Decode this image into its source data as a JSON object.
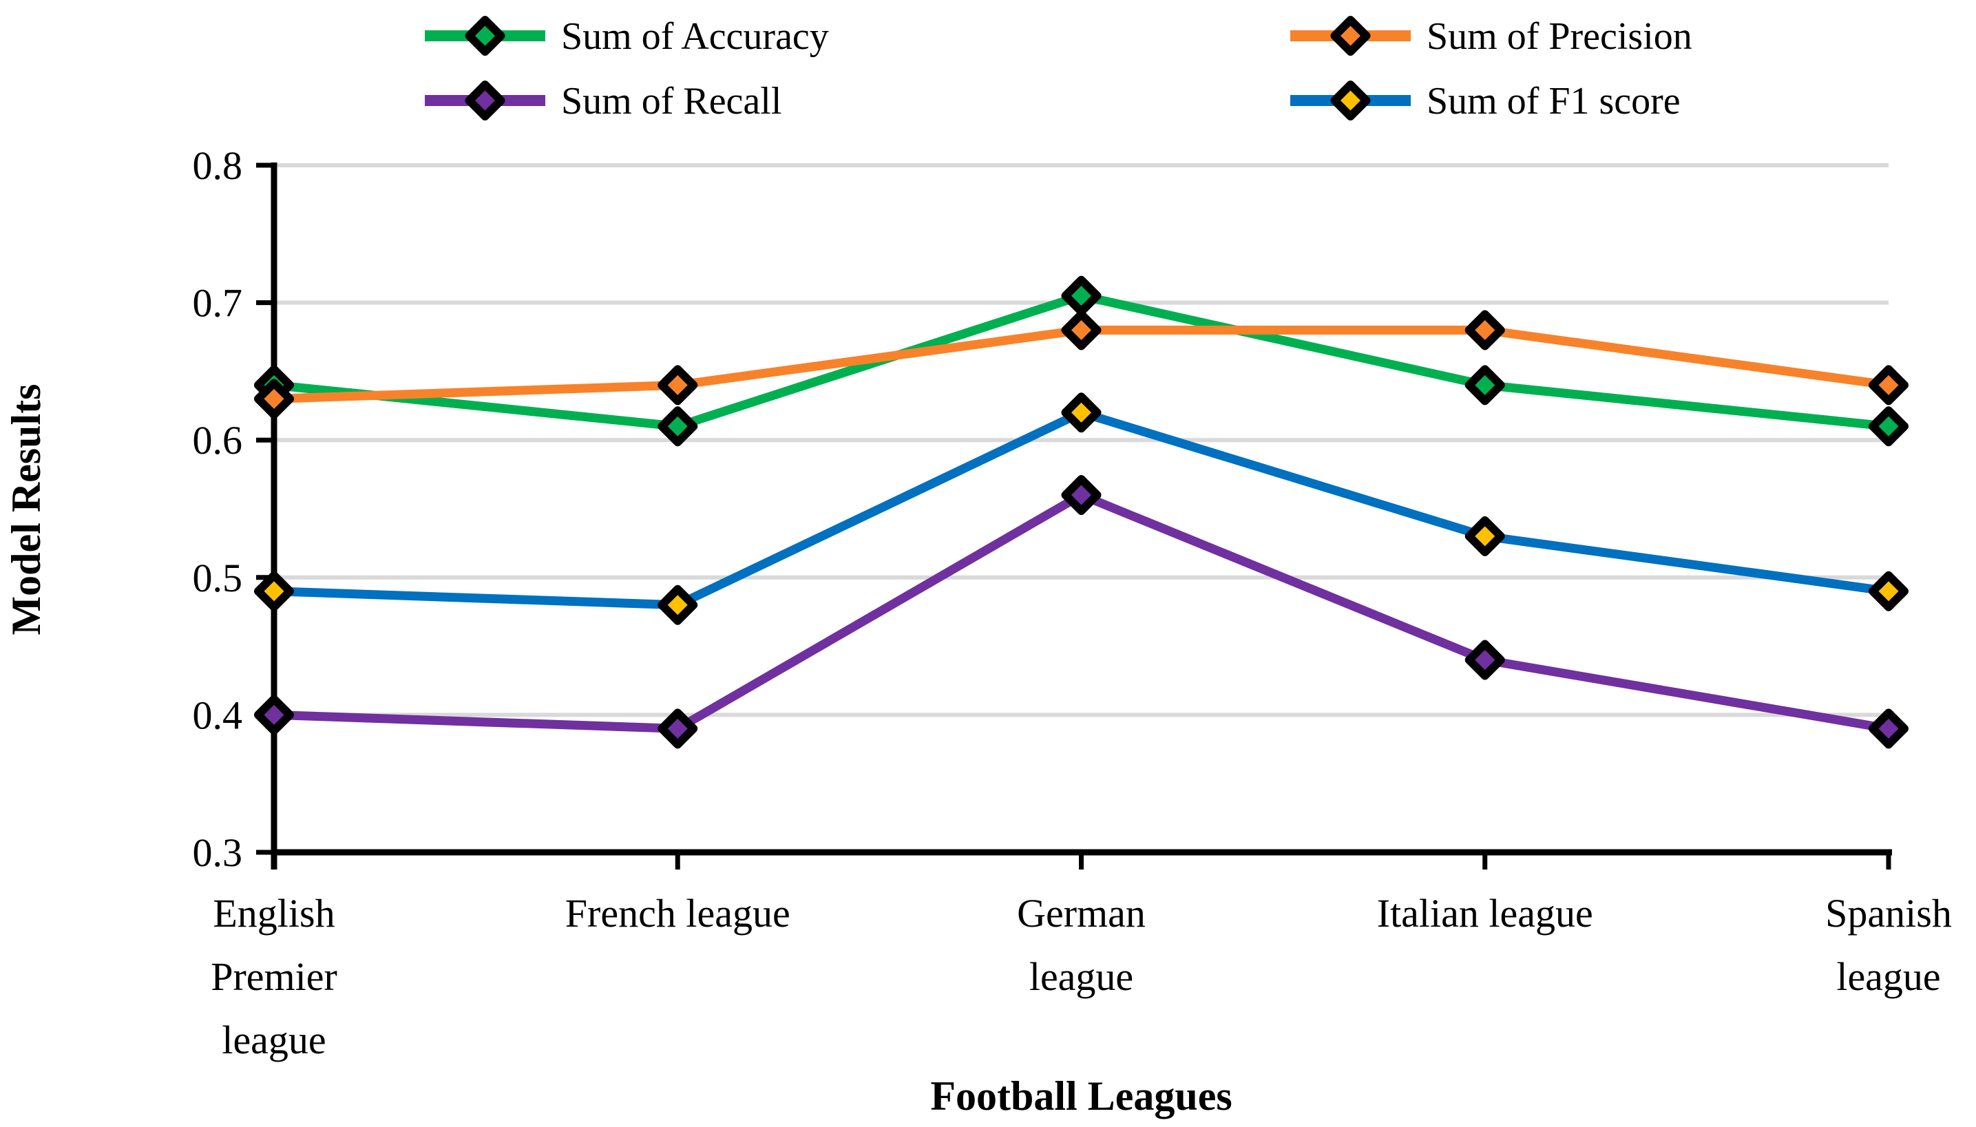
{
  "chart_data": {
    "type": "line",
    "title": "",
    "xlabel": "Football Leagues",
    "ylabel": "Model Results",
    "ylim": [
      0.3,
      0.8
    ],
    "ytick_step": 0.1,
    "ytick_labels": [
      "0.3",
      "0.4",
      "0.5",
      "0.6",
      "0.7",
      "0.8"
    ],
    "grid": true,
    "legend_position": "top",
    "categories": [
      "English Premier league",
      "French league",
      "German league",
      "Italian league",
      "Spanish league"
    ],
    "category_label_lines": [
      [
        "English",
        "Premier",
        "league"
      ],
      [
        "French league"
      ],
      [
        "German",
        "league"
      ],
      [
        "Italian league"
      ],
      [
        "Spanish",
        "league"
      ]
    ],
    "series": [
      {
        "name": "Sum of Accuracy",
        "line_color": "#00B050",
        "marker_color": "#00B050",
        "marker": "diamond",
        "values": [
          0.64,
          0.61,
          0.705,
          0.64,
          0.61
        ]
      },
      {
        "name": "Sum of Precision",
        "line_color": "#F8822A",
        "marker_color": "#F8822A",
        "marker": "diamond",
        "values": [
          0.63,
          0.64,
          0.68,
          0.68,
          0.64
        ]
      },
      {
        "name": "Sum of Recall",
        "line_color": "#7030A0",
        "marker_color": "#7030A0",
        "marker": "diamond",
        "values": [
          0.4,
          0.39,
          0.56,
          0.44,
          0.39
        ]
      },
      {
        "name": "Sum of F1 score",
        "line_color": "#0070C0",
        "marker_color": "#FFC000",
        "marker": "diamond",
        "values": [
          0.49,
          0.48,
          0.62,
          0.53,
          0.49
        ]
      }
    ],
    "legend": {
      "rows": [
        [
          "Sum of Accuracy",
          "Sum of Precision"
        ],
        [
          "Sum of Recall",
          "Sum of F1 score"
        ]
      ]
    },
    "colors": {
      "gridline": "#D9D9D9",
      "axis": "#000000",
      "text": "#000000",
      "background": "#FFFFFF"
    }
  }
}
